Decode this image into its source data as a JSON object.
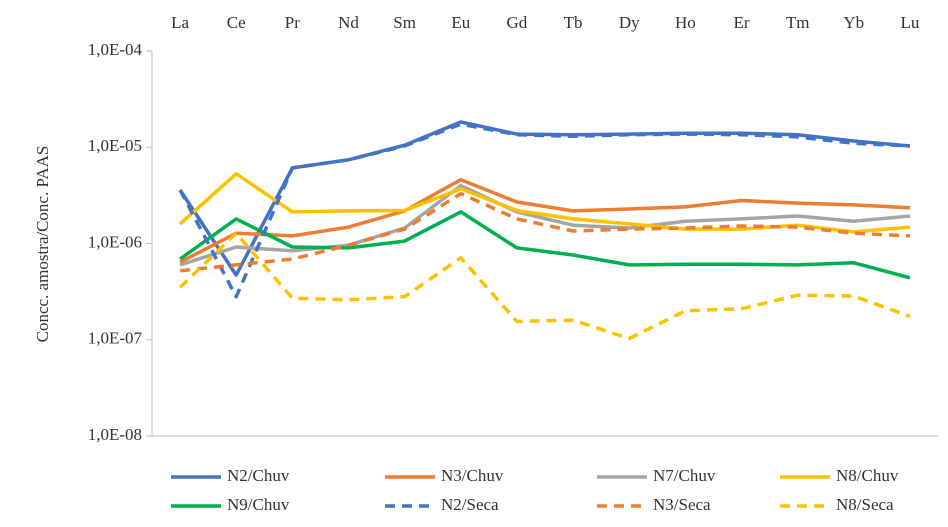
{
  "chart_data": {
    "type": "line",
    "y_label": "Concc. amostra/Conc. PAAS",
    "log_y": true,
    "category_axis": "top",
    "categories": [
      "La",
      "Ce",
      "Pr",
      "Nd",
      "Sm",
      "Eu",
      "Gd",
      "Tb",
      "Dy",
      "Ho",
      "Er",
      "Tm",
      "Yb",
      "Lu"
    ],
    "ylim": [
      1e-08,
      0.0001
    ],
    "yticks": [
      {
        "value": 1e-08,
        "label": "1,0E-08"
      },
      {
        "value": 1e-07,
        "label": "1,0E-07"
      },
      {
        "value": 1e-06,
        "label": "1,0E-06"
      },
      {
        "value": 1e-05,
        "label": "1,0E-05"
      },
      {
        "value": 0.0001,
        "label": "1,0E-04"
      }
    ],
    "series": [
      {
        "name": "N2/Chuv",
        "color": "#4472c4",
        "dashed": false,
        "values": [
          3.6e-06,
          4.7e-07,
          6.1e-06,
          7.4e-06,
          1.05e-05,
          1.83e-05,
          1.37e-05,
          1.35e-05,
          1.37e-05,
          1.4e-05,
          1.4e-05,
          1.35e-05,
          1.16e-05,
          1.03e-05
        ]
      },
      {
        "name": "N3/Chuv",
        "color": "#ed7d31",
        "dashed": false,
        "values": [
          6.4e-07,
          1.28e-06,
          1.2e-06,
          1.48e-06,
          2.18e-06,
          4.6e-06,
          2.7e-06,
          2.18e-06,
          2.28e-06,
          2.4e-06,
          2.8e-06,
          2.63e-06,
          2.52e-06,
          2.35e-06
        ]
      },
      {
        "name": "N7/Chuv",
        "color": "#a5a5a5",
        "dashed": false,
        "values": [
          6e-07,
          9.2e-07,
          8.4e-07,
          9.6e-07,
          1.45e-06,
          4e-06,
          2.13e-06,
          1.55e-06,
          1.45e-06,
          1.7e-06,
          1.8e-06,
          1.93e-06,
          1.7e-06,
          1.93e-06
        ]
      },
      {
        "name": "N8/Chuv",
        "color": "#ffc000",
        "dashed": false,
        "values": [
          1.6e-06,
          5.3e-06,
          2.13e-06,
          2.18e-06,
          2.2e-06,
          3.7e-06,
          2.2e-06,
          1.8e-06,
          1.6e-06,
          1.41e-06,
          1.41e-06,
          1.55e-06,
          1.32e-06,
          1.48e-06
        ]
      },
      {
        "name": "N9/Chuv",
        "color": "#00b050",
        "dashed": false,
        "values": [
          6.9e-07,
          1.8e-06,
          9.2e-07,
          9e-07,
          1.06e-06,
          2.13e-06,
          9e-07,
          7.6e-07,
          6e-07,
          6.1e-07,
          6.1e-07,
          6e-07,
          6.3e-07,
          4.4e-07
        ]
      },
      {
        "name": "N2/Seca",
        "color": "#4472c4",
        "dashed": true,
        "values": [
          3.6e-06,
          2.8e-07,
          6.1e-06,
          7.4e-06,
          1.03e-05,
          1.74e-05,
          1.35e-05,
          1.3e-05,
          1.35e-05,
          1.37e-05,
          1.35e-05,
          1.28e-05,
          1.1e-05,
          1.03e-05
        ]
      },
      {
        "name": "N3/Seca",
        "color": "#ed7d31",
        "dashed": true,
        "values": [
          5.2e-07,
          6e-07,
          6.9e-07,
          9.6e-07,
          1.41e-06,
          3.3e-06,
          1.8e-06,
          1.35e-06,
          1.41e-06,
          1.45e-06,
          1.52e-06,
          1.48e-06,
          1.28e-06,
          1.2e-06
        ]
      },
      {
        "name": "N8/Seca",
        "color": "#ffc000",
        "dashed": true,
        "values": [
          3.5e-07,
          1.28e-06,
          2.7e-07,
          2.6e-07,
          2.8e-07,
          7.1e-07,
          1.55e-07,
          1.6e-07,
          1.03e-07,
          2e-07,
          2.1e-07,
          2.9e-07,
          2.85e-07,
          1.75e-07
        ]
      }
    ]
  }
}
